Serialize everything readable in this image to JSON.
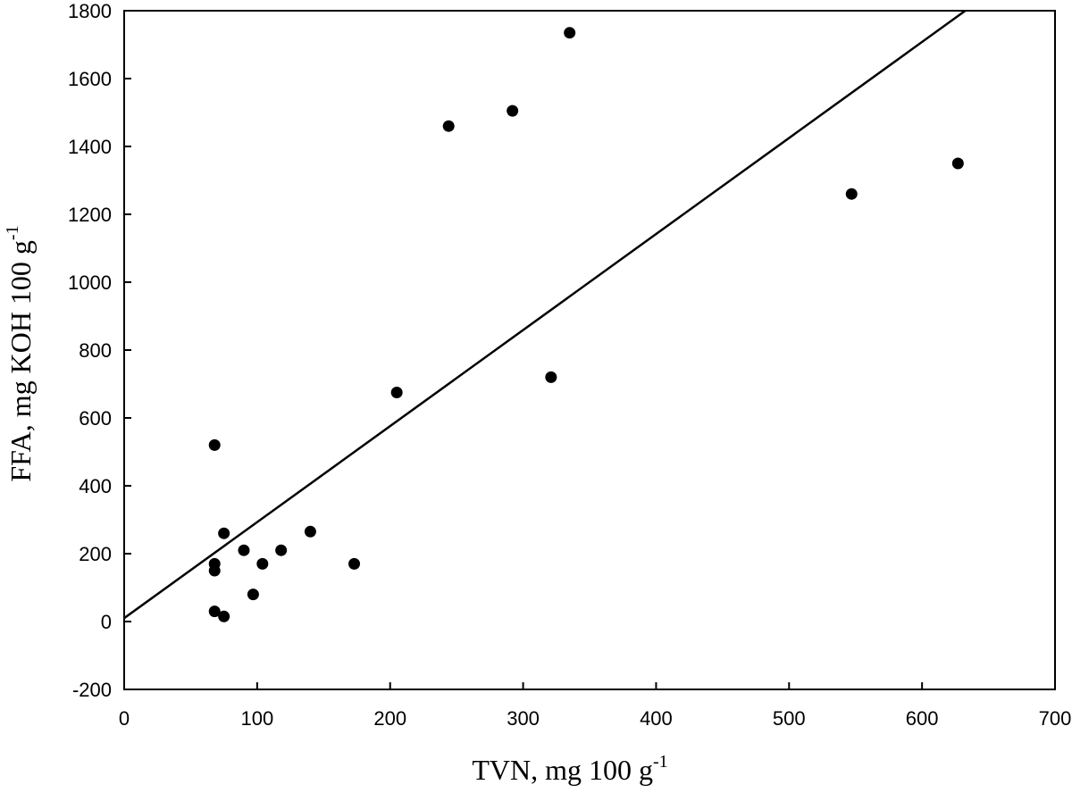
{
  "chart_data": {
    "type": "scatter",
    "title": "",
    "xlabel": {
      "main": "TVN, mg 100 g",
      "sup": "-1"
    },
    "ylabel": {
      "main": "FFA, mg KOH 100 g",
      "sup": "-1"
    },
    "xlim": [
      0,
      700
    ],
    "ylim": [
      -200,
      1800
    ],
    "xticks": [
      0,
      100,
      200,
      300,
      400,
      500,
      600,
      700
    ],
    "yticks": [
      -200,
      0,
      200,
      400,
      600,
      800,
      1000,
      1200,
      1400,
      1600,
      1800
    ],
    "grid": false,
    "legend": "none",
    "marker_color": "#000000",
    "line_color": "#000000",
    "points": [
      {
        "x": 68,
        "y": 520
      },
      {
        "x": 68,
        "y": 170
      },
      {
        "x": 68,
        "y": 150
      },
      {
        "x": 68,
        "y": 30
      },
      {
        "x": 75,
        "y": 15
      },
      {
        "x": 75,
        "y": 260
      },
      {
        "x": 90,
        "y": 210
      },
      {
        "x": 97,
        "y": 80
      },
      {
        "x": 104,
        "y": 170
      },
      {
        "x": 118,
        "y": 210
      },
      {
        "x": 140,
        "y": 265
      },
      {
        "x": 173,
        "y": 170
      },
      {
        "x": 205,
        "y": 675
      },
      {
        "x": 244,
        "y": 1460
      },
      {
        "x": 292,
        "y": 1505
      },
      {
        "x": 321,
        "y": 720
      },
      {
        "x": 335,
        "y": 1735
      },
      {
        "x": 547,
        "y": 1260
      },
      {
        "x": 627,
        "y": 1350
      }
    ],
    "fit_line": {
      "intercept": 10,
      "slope": 2.83
    }
  }
}
